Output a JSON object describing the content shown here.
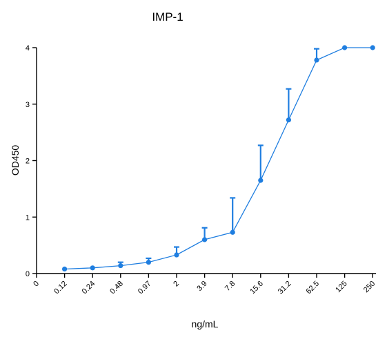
{
  "chart_data": {
    "type": "line",
    "title": "IMP-1",
    "xlabel": "ng/mL",
    "ylabel": "OD450",
    "x_tick_labels": [
      "0",
      "0.12",
      "0.24",
      "0.48",
      "0.97",
      "2",
      "3.9",
      "7.8",
      "15.6",
      "31.2",
      "62.5",
      "125",
      "250"
    ],
    "y_tick_labels": [
      "0",
      "1",
      "2",
      "3",
      "4"
    ],
    "ylim": [
      0,
      4
    ],
    "grid": false,
    "legend": "none",
    "series": [
      {
        "x": [
          "0.12",
          "0.24",
          "0.48",
          "0.97",
          "2",
          "3.9",
          "7.8",
          "15.6",
          "31.2",
          "62.5",
          "125",
          "250"
        ],
        "values": [
          0.08,
          0.1,
          0.14,
          0.2,
          0.33,
          0.6,
          0.73,
          1.65,
          2.72,
          3.78,
          4.0,
          4.0
        ],
        "error_upper": [
          0.08,
          0.1,
          0.2,
          0.27,
          0.47,
          0.81,
          1.34,
          2.27,
          3.27,
          3.98,
          4.0,
          4.0
        ],
        "color": "#1f7ee0"
      }
    ]
  }
}
